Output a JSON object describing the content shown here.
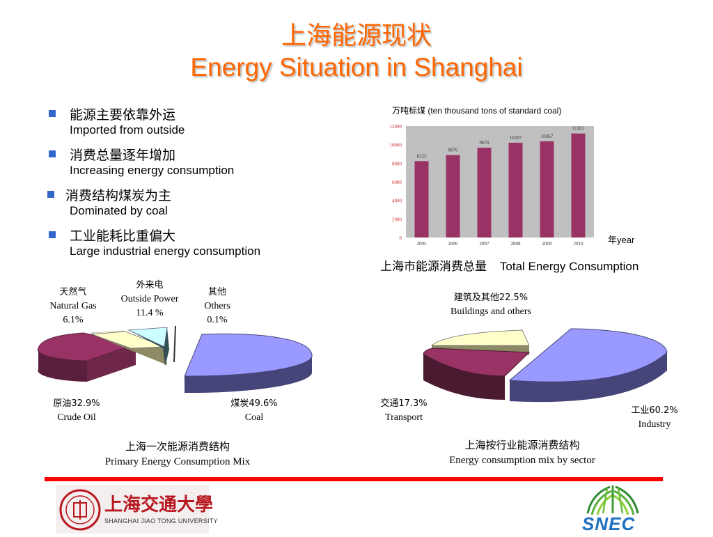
{
  "title": {
    "cn": "上海能源现状",
    "en": "Energy Situation in Shanghai"
  },
  "bullets": [
    {
      "cn": "能源主要依靠外运",
      "en": "Imported from outside"
    },
    {
      "cn": "消费总量逐年增加",
      "en": "Increasing energy consumption"
    },
    {
      "cn": "消费结构煤炭为主",
      "en": "Dominated by coal"
    },
    {
      "cn": "工业能耗比重偏大",
      "en": "Large industrial energy consumption"
    }
  ],
  "colors": {
    "title": "#ff6600",
    "bar": "#993366",
    "bar_bg": "#c0c0c0",
    "bullet": "#3366cc",
    "divider": "#ff0000"
  },
  "chart_data": [
    {
      "type": "bar",
      "unit_label": "万吨标煤  (ten thousand tons of standard coal)",
      "categories": [
        "2005",
        "2006",
        "2007",
        "2008",
        "2009",
        "2010"
      ],
      "values": [
        8225,
        8876,
        9670,
        10207,
        10367,
        11201
      ],
      "value_labels": [
        "8225",
        "8876",
        "9670",
        "10207",
        "10367",
        "11201"
      ],
      "yticks": [
        "0",
        "2000",
        "4000",
        "6000",
        "8000",
        "10000",
        "12000"
      ],
      "ylim": [
        0,
        12000
      ],
      "xlabel": "年year",
      "title": "上海市能源消费总量    Total Energy Consumption",
      "grid": false
    },
    {
      "type": "pie",
      "title_cn": "上海一次能源消费结构",
      "title_en": "Primary Energy Consumption Mix",
      "slices": [
        {
          "cn": "煤炭49.6%",
          "en": "Coal",
          "value": 49.6,
          "color": "#9999ff"
        },
        {
          "cn": "原油32.9%",
          "en": "Crude Oil",
          "value": 32.9,
          "color": "#993366"
        },
        {
          "cn": "天然气",
          "en": "Natural Gas",
          "pct": "6.1%",
          "value": 6.1,
          "color": "#ffffcc"
        },
        {
          "cn": "外来电",
          "en": "Outside Power",
          "pct": "11.4 %",
          "value": 11.4,
          "color": "#ccffff"
        },
        {
          "cn": "其他",
          "en": "Others",
          "pct": "0.1%",
          "value": 0.1,
          "color": "#ffffff"
        }
      ]
    },
    {
      "type": "pie",
      "title_cn": "上海按行业能源消费结构",
      "title_en": "Energy consumption mix by sector",
      "slices": [
        {
          "cn": "工业60.2%",
          "en": "Industry",
          "value": 60.2,
          "color": "#9999ff"
        },
        {
          "cn": "交通17.3%",
          "en": "Transport",
          "value": 17.3,
          "color": "#993366"
        },
        {
          "cn": "建筑及其他22.5%",
          "en": "Buildings and others",
          "value": 22.5,
          "color": "#ffffcc"
        }
      ]
    }
  ],
  "logos": {
    "sjtu": {
      "cn": "上海交通大學",
      "en": "SHANGHAI JIAO TONG UNIVERSITY"
    },
    "snec": {
      "text": "SNEC"
    }
  }
}
